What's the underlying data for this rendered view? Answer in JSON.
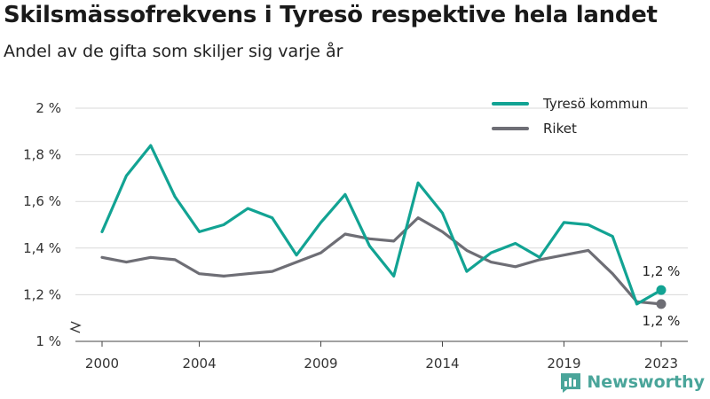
{
  "title": "Skilsmässofrekvens i Tyresö respektive hela landet",
  "subtitle": "Andel av de gifta som skiljer sig varje år",
  "brand": {
    "name": "Newsworthy",
    "logo_icon": "newsworthy-logo-icon",
    "color": "#4aa59a"
  },
  "chart_data": {
    "type": "line",
    "title": "Skilsmässofrekvens i Tyresö respektive hela landet",
    "subtitle": "Andel av de gifta som skiljer sig varje år",
    "xlabel": "",
    "ylabel": "",
    "x": [
      2000,
      2001,
      2002,
      2003,
      2004,
      2005,
      2006,
      2007,
      2008,
      2009,
      2010,
      2011,
      2012,
      2013,
      2014,
      2015,
      2016,
      2017,
      2018,
      2019,
      2020,
      2021,
      2022,
      2023
    ],
    "x_ticks": [
      2000,
      2004,
      2009,
      2014,
      2019,
      2023
    ],
    "y_ticks": [
      1.0,
      1.2,
      1.4,
      1.6,
      1.8,
      2.0
    ],
    "y_tick_labels": [
      "1 %",
      "1,2 %",
      "1,4 %",
      "1,6 %",
      "1,8 %",
      "2 %"
    ],
    "ylim": [
      1.0,
      2.0
    ],
    "y_axis_break": true,
    "grid": "horizontal",
    "legend_position": "top-right",
    "series": [
      {
        "name": "Tyresö kommun",
        "color": "#12a393",
        "values": [
          1.47,
          1.71,
          1.84,
          1.62,
          1.47,
          1.5,
          1.57,
          1.53,
          1.37,
          1.51,
          1.63,
          1.41,
          1.28,
          1.68,
          1.55,
          1.3,
          1.38,
          1.42,
          1.36,
          1.51,
          1.5,
          1.45,
          1.16,
          1.22
        ],
        "end_label": "1,2 %"
      },
      {
        "name": "Riket",
        "color": "#6e6e75",
        "values": [
          1.36,
          1.34,
          1.36,
          1.35,
          1.29,
          1.28,
          1.29,
          1.3,
          1.34,
          1.38,
          1.46,
          1.44,
          1.43,
          1.53,
          1.47,
          1.39,
          1.34,
          1.32,
          1.35,
          1.37,
          1.39,
          1.29,
          1.17,
          1.16
        ],
        "end_label": "1,2 %"
      }
    ]
  }
}
